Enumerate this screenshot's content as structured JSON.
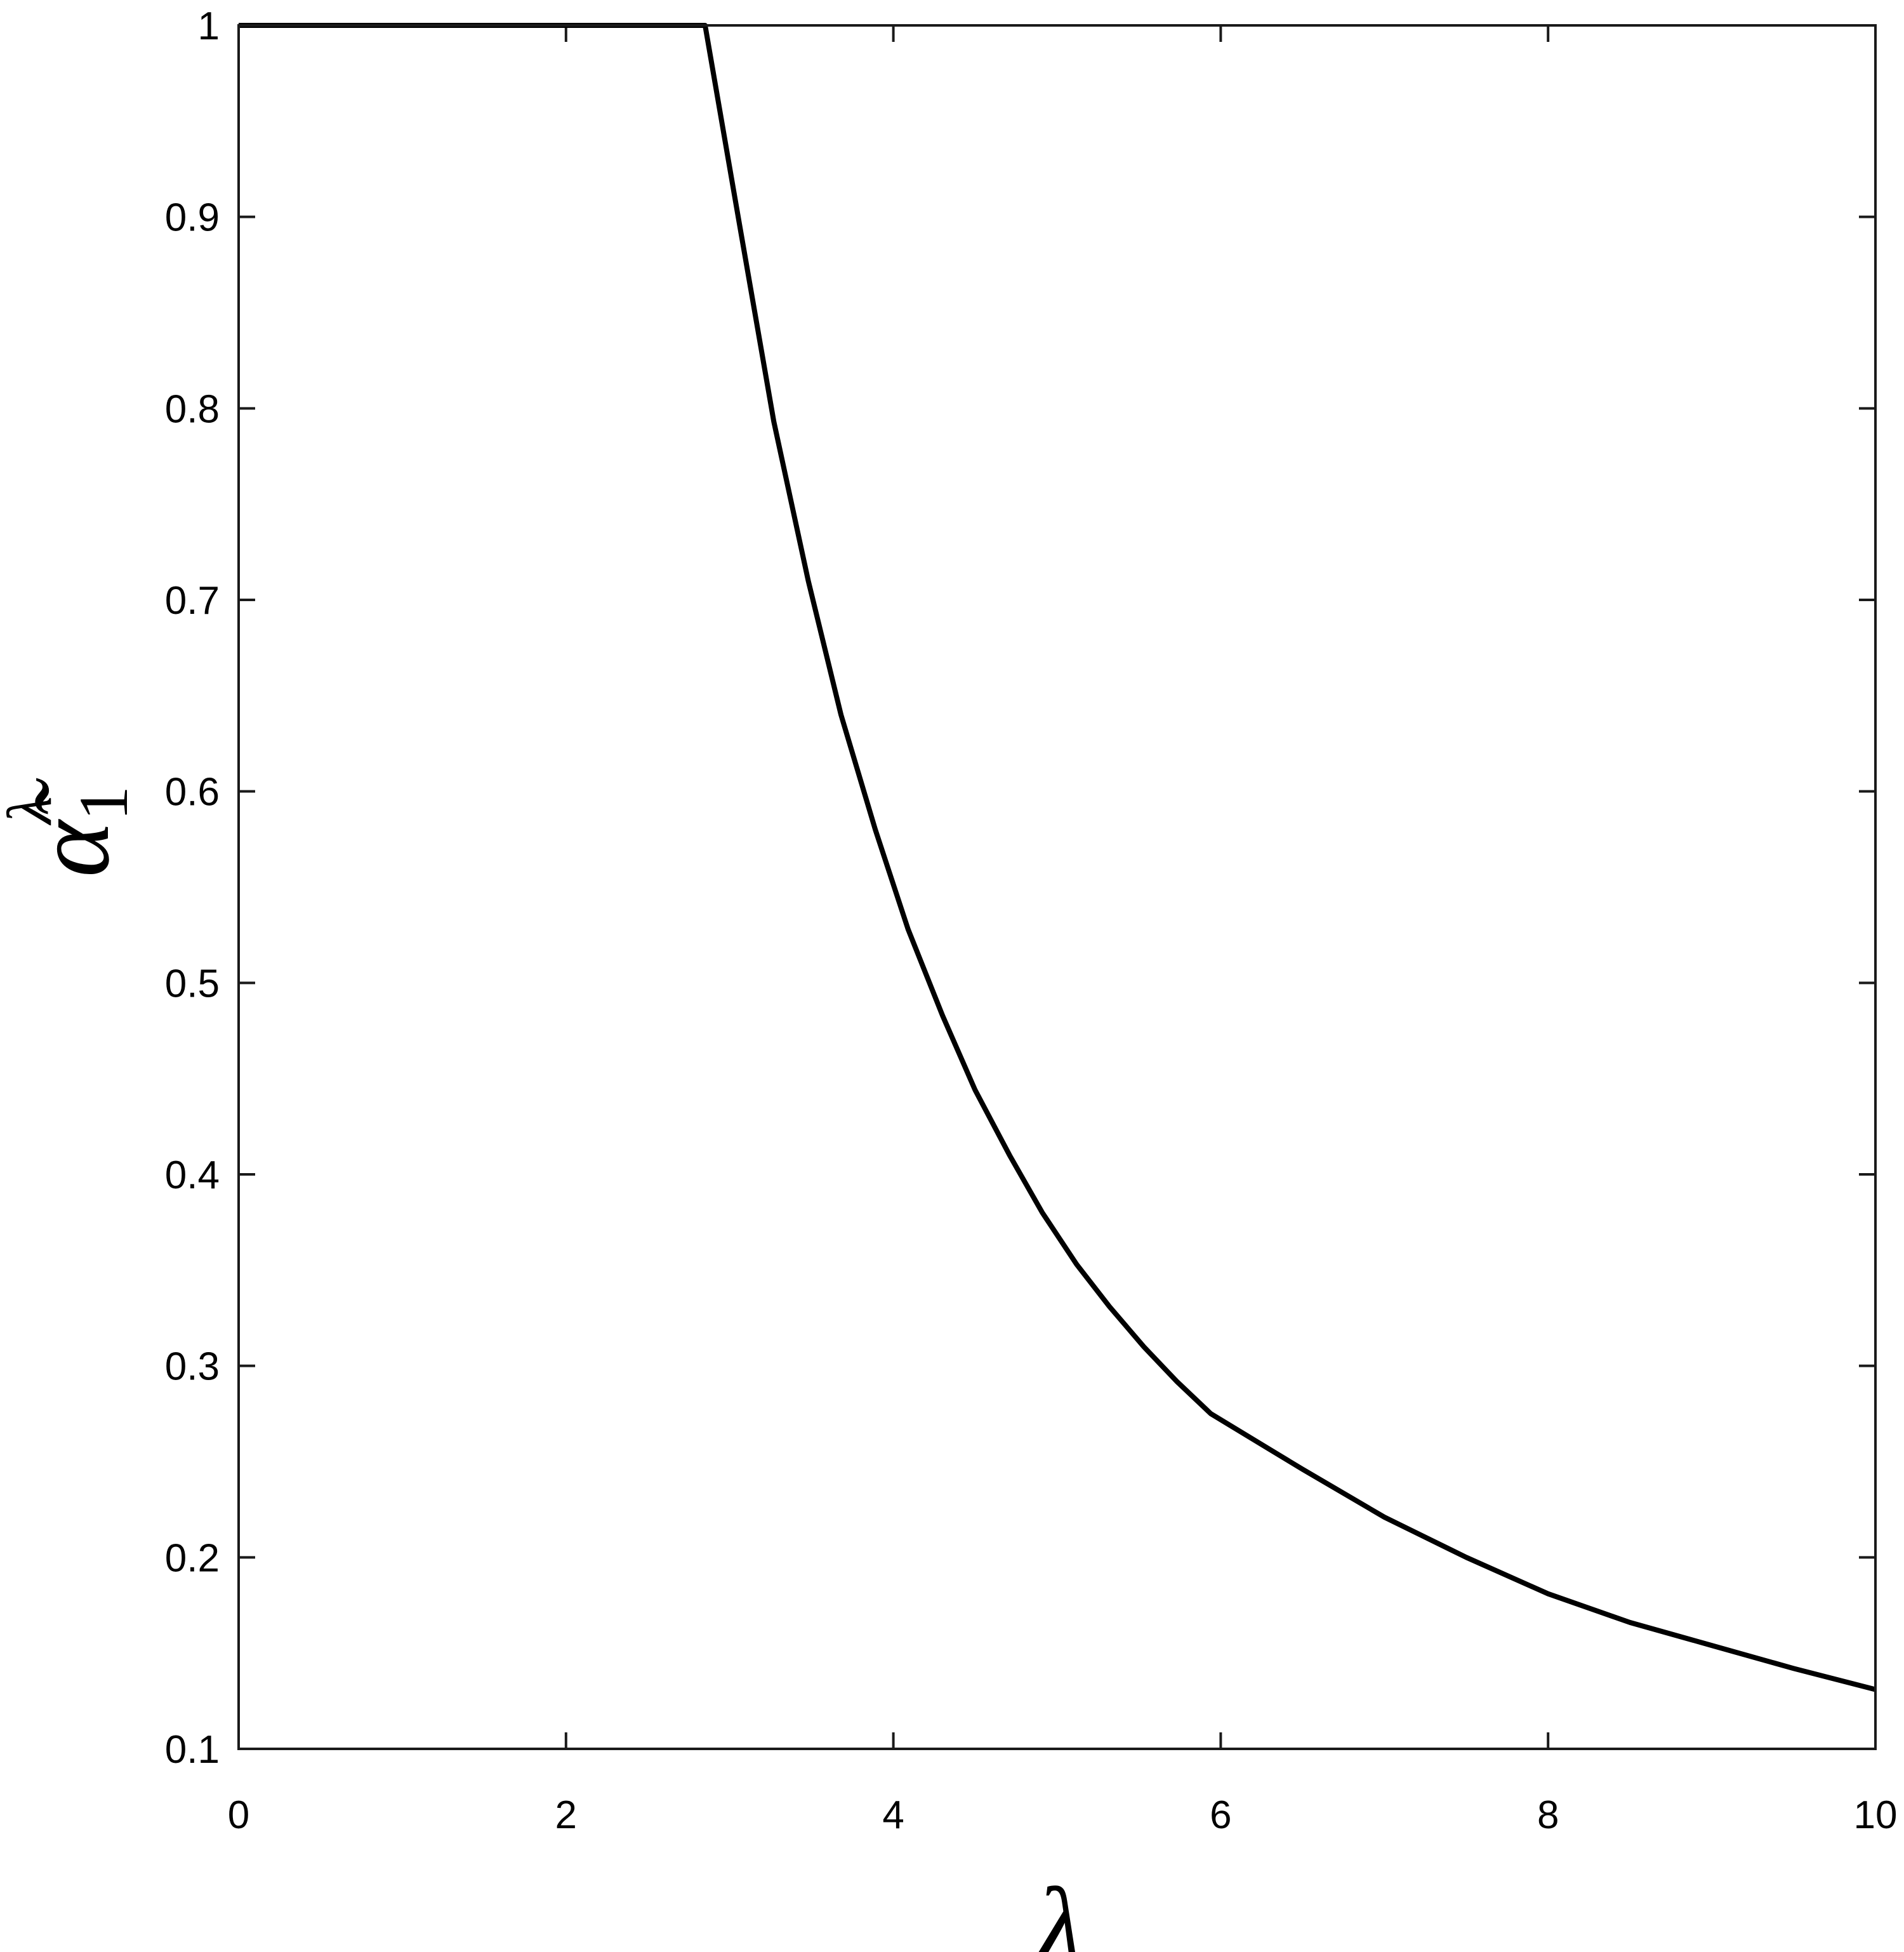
{
  "chart_data": {
    "type": "line",
    "title": "",
    "xlabel": "λ",
    "ylabel": {
      "base": "α̃",
      "sub": "1",
      "sup": "λ"
    },
    "xlim": [
      0,
      10
    ],
    "ylim": [
      0.1,
      1
    ],
    "xticks": [
      0,
      2,
      4,
      6,
      8,
      10
    ],
    "yticks": [
      0.1,
      0.2,
      0.3,
      0.4,
      0.5,
      0.6,
      0.7,
      0.8,
      0.9,
      1
    ],
    "xtick_labels": [
      "0",
      "2",
      "4",
      "6",
      "8",
      "10"
    ],
    "ytick_labels": [
      "0.1",
      "0.2",
      "0.3",
      "0.4",
      "0.5",
      "0.6",
      "0.7",
      "0.8",
      "0.9",
      "1"
    ],
    "grid": false,
    "line_color": "#000000",
    "series": [
      {
        "x": [
          0,
          2.85,
          3.06,
          3.27,
          3.48,
          3.68,
          3.89,
          4.09,
          4.3,
          4.5,
          4.71,
          4.91,
          5.12,
          5.32,
          5.53,
          5.73,
          5.94,
          6.5,
          7.0,
          7.5,
          8.0,
          8.5,
          9.0,
          9.5,
          10.0
        ],
        "y": [
          1.0,
          1.0,
          0.896,
          0.793,
          0.71,
          0.64,
          0.58,
          0.528,
          0.483,
          0.444,
          0.41,
          0.38,
          0.353,
          0.331,
          0.31,
          0.292,
          0.275,
          0.246,
          0.221,
          0.2,
          0.181,
          0.166,
          0.154,
          0.142,
          0.131
        ]
      }
    ]
  }
}
